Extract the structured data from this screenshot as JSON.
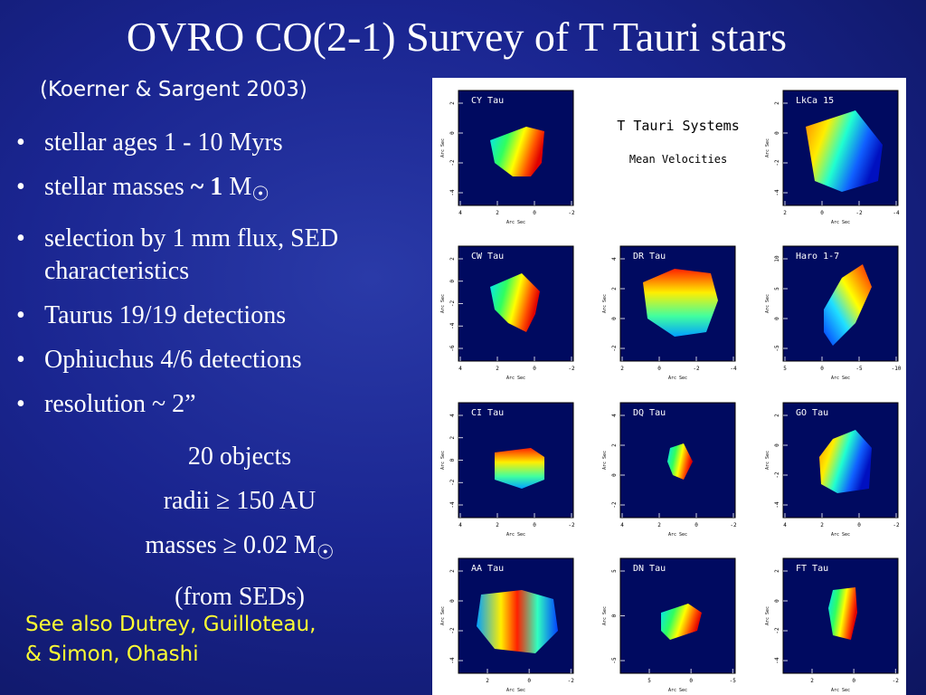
{
  "title": "OVRO CO(2-1) Survey of T Tauri stars",
  "subtitle": "(Koerner & Sargent 2003)",
  "bullets": [
    "stellar ages 1 - 10 Myrs",
    {
      "text": "stellar masses ",
      "bold": "~ 1",
      "unit": " M",
      "symbol": "☉"
    },
    "selection by 1 mm flux, SED characteristics",
    "Taurus  19/19 detections",
    "Ophiuchus 4/6 detections",
    "resolution ~ 2”"
  ],
  "summary": [
    "20 objects",
    "radii  ≥  150 AU",
    {
      "text": "masses ≥  0.02 M",
      "symbol": "☉"
    },
    "(from SEDs)"
  ],
  "footnote": [
    "See also Dutrey, Guilloteau,",
    "& Simon, Ohashi"
  ],
  "figure": {
    "title": "T Tauri Systems",
    "subtitle": "Mean Velocities",
    "axis_label": "Arc Sec",
    "panels": [
      {
        "name": "CY Tau",
        "yticks": [
          2,
          0,
          -2,
          -4
        ],
        "xticks": [
          4,
          2,
          0,
          -2
        ]
      },
      {
        "name": "LkCa 15",
        "yticks": [
          2,
          0,
          -2,
          -4
        ],
        "xticks": [
          2,
          0,
          -2,
          -4
        ]
      },
      {
        "name": "CW Tau",
        "yticks": [
          2,
          0,
          -2,
          -4,
          -6
        ],
        "xticks": [
          4,
          2,
          0,
          -2
        ]
      },
      {
        "name": "DR Tau",
        "yticks": [
          4,
          2,
          0,
          -2
        ],
        "xticks": [
          2,
          0,
          -2,
          -4
        ]
      },
      {
        "name": "Haro 1-7",
        "yticks": [
          10,
          5,
          0,
          -5
        ],
        "xticks": [
          5,
          0,
          -5,
          -10
        ]
      },
      {
        "name": "CI Tau",
        "yticks": [
          4,
          2,
          0,
          -2,
          -4
        ],
        "xticks": [
          4,
          2,
          0,
          -2
        ]
      },
      {
        "name": "DQ Tau",
        "yticks": [
          4,
          2,
          0,
          -2
        ],
        "xticks": [
          4,
          2,
          0,
          -2
        ]
      },
      {
        "name": "GO Tau",
        "yticks": [
          2,
          0,
          -2,
          -4
        ],
        "xticks": [
          4,
          2,
          0,
          -2
        ]
      },
      {
        "name": "AA Tau",
        "yticks": [
          2,
          0,
          -2,
          -4
        ],
        "xticks": [
          2,
          0,
          -2
        ]
      },
      {
        "name": "DN Tau",
        "yticks": [
          5,
          0,
          -5
        ],
        "xticks": [
          5,
          0,
          -5
        ]
      },
      {
        "name": "FT Tau",
        "yticks": [
          2,
          0,
          -2,
          -4
        ],
        "xticks": [
          2,
          0,
          -2
        ]
      }
    ]
  }
}
